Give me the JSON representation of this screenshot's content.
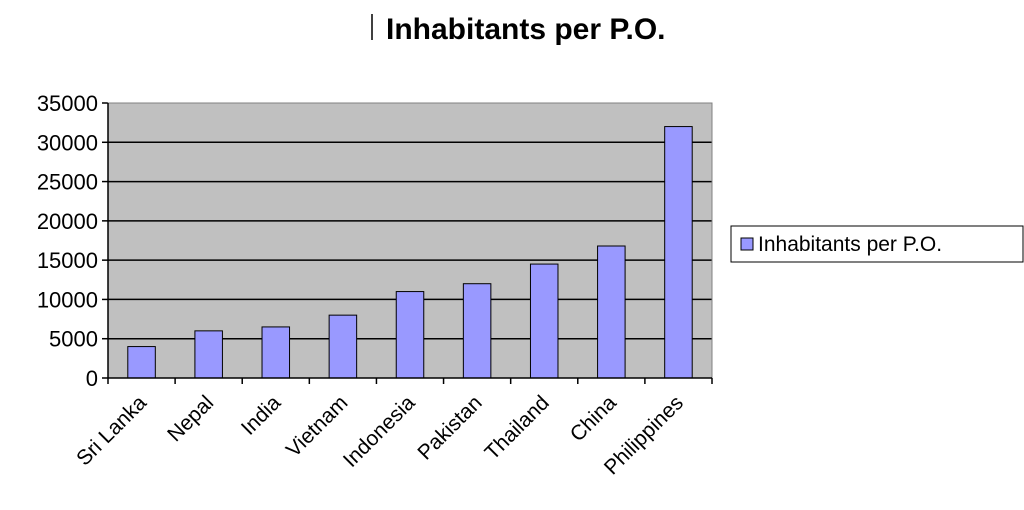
{
  "chart_data": {
    "type": "bar",
    "title": "Inhabitants per P.O.",
    "categories": [
      "Sri Lanka",
      "Nepal",
      "India",
      "Vietnam",
      "Indonesia",
      "Pakistan",
      "Thailand",
      "China",
      "Philippines"
    ],
    "series": [
      {
        "name": "Inhabitants per P.O.",
        "values": [
          4000,
          6000,
          6500,
          8000,
          11000,
          12000,
          14500,
          16800,
          32000
        ]
      }
    ],
    "ylim": [
      0,
      35000
    ],
    "yticks": [
      0,
      5000,
      10000,
      15000,
      20000,
      25000,
      30000,
      35000
    ],
    "grid": true,
    "legend": "right",
    "colors": {
      "bar": "#9999ff",
      "bar_stroke": "#000000",
      "plot_bg": "#c0c0c0",
      "gridline": "#000000"
    }
  }
}
